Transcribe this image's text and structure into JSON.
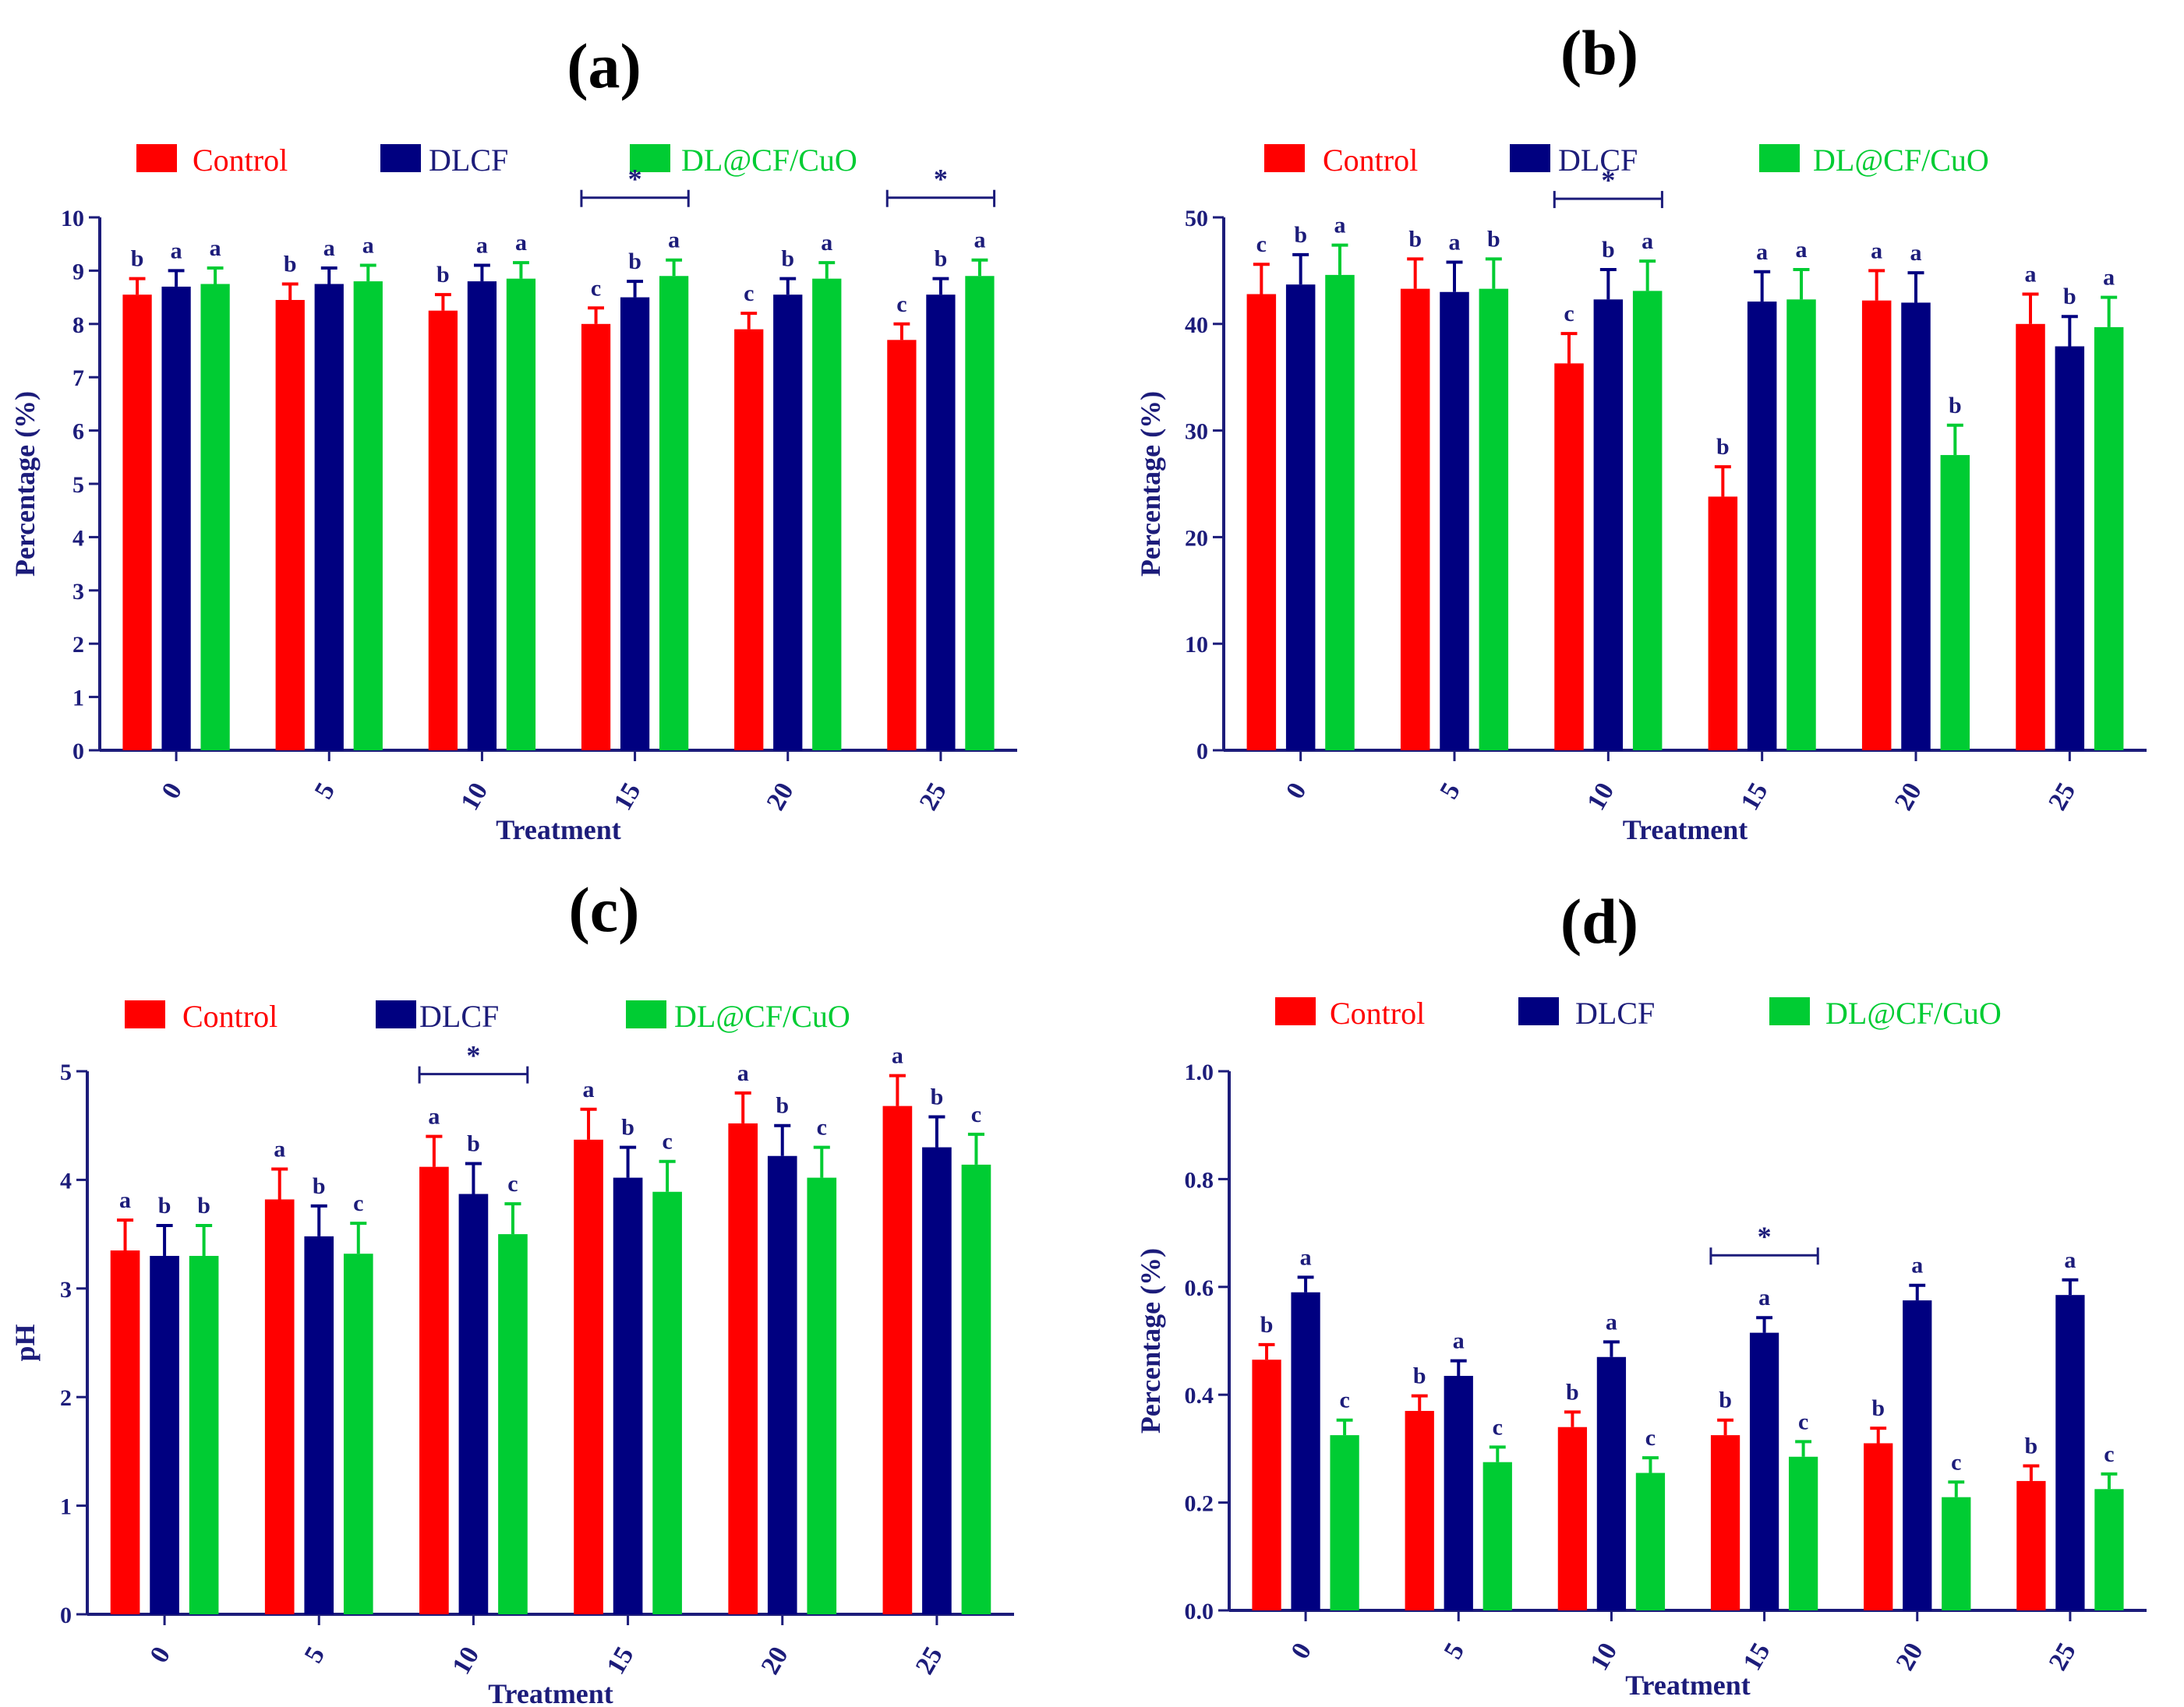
{
  "colors": {
    "Control": "#ff0000",
    "DLCF": "#000080",
    "DL@CF/CuO": "#00cc33",
    "axis": "#1c1c7a",
    "text": "#1c1c7a"
  },
  "chart_data": [
    {
      "type": "bar",
      "title": "(a)",
      "xlabel": "Treatment",
      "ylabel": "Percentage (%)",
      "ylim": [
        0,
        10
      ],
      "yticks": [
        "0",
        "1",
        "2",
        "3",
        "4",
        "5",
        "6",
        "7",
        "8",
        "9",
        "10"
      ],
      "categories": [
        "0",
        "5",
        "10",
        "15",
        "20",
        "25"
      ],
      "series": [
        {
          "name": "Control",
          "values": [
            8.55,
            8.45,
            8.25,
            8.0,
            7.9,
            7.7
          ],
          "errors": [
            0.3,
            0.3,
            0.3,
            0.3,
            0.3,
            0.3
          ],
          "letters": [
            "b",
            "b",
            "b",
            "c",
            "c",
            "c"
          ]
        },
        {
          "name": "DLCF",
          "values": [
            8.7,
            8.75,
            8.8,
            8.5,
            8.55,
            8.55
          ],
          "errors": [
            0.3,
            0.3,
            0.3,
            0.3,
            0.3,
            0.3
          ],
          "letters": [
            "a",
            "a",
            "a",
            "b",
            "b",
            "b"
          ]
        },
        {
          "name": "DL@CF/CuO",
          "values": [
            8.75,
            8.8,
            8.85,
            8.9,
            8.85,
            8.9
          ],
          "errors": [
            0.3,
            0.3,
            0.3,
            0.3,
            0.3,
            0.3
          ],
          "letters": [
            "a",
            "a",
            "a",
            "a",
            "a",
            "a"
          ]
        }
      ],
      "significance": [
        {
          "category_index": 3,
          "label": "*"
        },
        {
          "category_index": 5,
          "label": "*"
        }
      ]
    },
    {
      "type": "bar",
      "title": "(b)",
      "xlabel": "Treatment",
      "ylabel": "Percentage (%)",
      "ylim": [
        0,
        50
      ],
      "yticks": [
        "0",
        "10",
        "20",
        "30",
        "40",
        "50"
      ],
      "categories": [
        "0",
        "5",
        "10",
        "15",
        "20",
        "25"
      ],
      "series": [
        {
          "name": "Control",
          "values": [
            42.8,
            43.3,
            36.3,
            23.8,
            42.2,
            40.0
          ],
          "errors": [
            2.8,
            2.8,
            2.8,
            2.8,
            2.8,
            2.8
          ],
          "letters": [
            "c",
            "b",
            "c",
            "b",
            "a",
            "a"
          ]
        },
        {
          "name": "DLCF",
          "values": [
            43.7,
            43.0,
            42.3,
            42.1,
            42.0,
            37.9
          ],
          "errors": [
            2.8,
            2.8,
            2.8,
            2.8,
            2.8,
            2.8
          ],
          "letters": [
            "b",
            "a",
            "b",
            "a",
            "a",
            "b"
          ]
        },
        {
          "name": "DL@CF/CuO",
          "values": [
            44.6,
            43.3,
            43.1,
            42.3,
            27.7,
            39.7
          ],
          "errors": [
            2.8,
            2.8,
            2.8,
            2.8,
            2.8,
            2.8
          ],
          "letters": [
            "a",
            "b",
            "a",
            "a",
            "b",
            "a"
          ]
        }
      ],
      "significance": [
        {
          "category_index": 2,
          "label": "*"
        }
      ]
    },
    {
      "type": "bar",
      "title": "(c)",
      "xlabel": "Treatment",
      "ylabel": "pH",
      "ylim": [
        0,
        5
      ],
      "yticks": [
        "0",
        "1",
        "2",
        "3",
        "4",
        "5"
      ],
      "categories": [
        "0",
        "5",
        "10",
        "15",
        "20",
        "25"
      ],
      "series": [
        {
          "name": "Control",
          "values": [
            3.35,
            3.82,
            4.12,
            4.37,
            4.52,
            4.68
          ],
          "errors": [
            0.28,
            0.28,
            0.28,
            0.28,
            0.28,
            0.28
          ],
          "letters": [
            "a",
            "a",
            "a",
            "a",
            "a",
            "a"
          ]
        },
        {
          "name": "DLCF",
          "values": [
            3.3,
            3.48,
            3.87,
            4.02,
            4.22,
            4.3
          ],
          "errors": [
            0.28,
            0.28,
            0.28,
            0.28,
            0.28,
            0.28
          ],
          "letters": [
            "b",
            "b",
            "b",
            "b",
            "b",
            "b"
          ]
        },
        {
          "name": "DL@CF/CuO",
          "values": [
            3.3,
            3.32,
            3.5,
            3.89,
            4.02,
            4.14
          ],
          "errors": [
            0.28,
            0.28,
            0.28,
            0.28,
            0.28,
            0.28
          ],
          "letters": [
            "b",
            "c",
            "c",
            "c",
            "c",
            "c"
          ]
        }
      ],
      "significance": [
        {
          "category_index": 2,
          "label": "*"
        }
      ]
    },
    {
      "type": "bar",
      "title": "(d)",
      "xlabel": "Treatment",
      "ylabel": "Percentage (%)",
      "ylim": [
        0,
        1.0
      ],
      "yticks": [
        "0.0",
        "0.2",
        "0.4",
        "0.6",
        "0.8",
        "1.0"
      ],
      "categories": [
        "0",
        "5",
        "10",
        "15",
        "20",
        "25"
      ],
      "series": [
        {
          "name": "Control",
          "values": [
            0.465,
            0.37,
            0.34,
            0.325,
            0.31,
            0.24
          ],
          "errors": [
            0.028,
            0.028,
            0.028,
            0.028,
            0.028,
            0.028
          ],
          "letters": [
            "b",
            "b",
            "b",
            "b",
            "b",
            "b"
          ]
        },
        {
          "name": "DLCF",
          "values": [
            0.59,
            0.435,
            0.47,
            0.515,
            0.575,
            0.585
          ],
          "errors": [
            0.028,
            0.028,
            0.028,
            0.028,
            0.028,
            0.028
          ],
          "letters": [
            "a",
            "a",
            "a",
            "a",
            "a",
            "a"
          ]
        },
        {
          "name": "DL@CF/CuO",
          "values": [
            0.325,
            0.275,
            0.255,
            0.285,
            0.21,
            0.225
          ],
          "errors": [
            0.028,
            0.028,
            0.028,
            0.028,
            0.028,
            0.028
          ],
          "letters": [
            "c",
            "c",
            "c",
            "c",
            "c",
            "c"
          ]
        }
      ],
      "significance": [
        {
          "category_index": 3,
          "label": "*"
        }
      ]
    }
  ]
}
